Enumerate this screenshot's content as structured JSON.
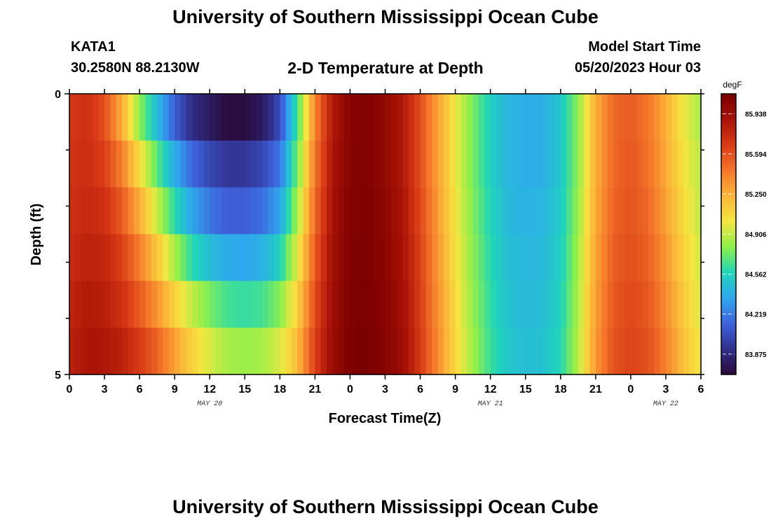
{
  "header": {
    "title": "University of Southern Mississippi Ocean Cube",
    "station": "KATA1",
    "coords": "30.2580N  88.2130W",
    "subtitle": "2-D Temperature at Depth",
    "model_start_label": "Model Start Time",
    "model_start_value": "05/20/2023 Hour 03"
  },
  "footer": {
    "title2": "University of Southern Mississippi Ocean Cube"
  },
  "chart_data": {
    "type": "heatmap",
    "xlabel": "Forecast Time(Z)",
    "ylabel": "Depth (ft)",
    "x_tick_labels": [
      "0",
      "3",
      "6",
      "9",
      "12",
      "15",
      "18",
      "21",
      "0",
      "3",
      "6",
      "9",
      "12",
      "15",
      "18",
      "21",
      "0",
      "3",
      "6"
    ],
    "date_labels": [
      {
        "label": "MAY 20",
        "at_tick_index": 4
      },
      {
        "label": "MAY 21",
        "at_tick_index": 12
      },
      {
        "label": "MAY 22",
        "at_tick_index": 17
      }
    ],
    "y_tick_labels": [
      "0",
      "5"
    ],
    "y_range": [
      0,
      5
    ],
    "colorbar": {
      "unit": "degF",
      "labels": [
        "85.938",
        "85.594",
        "85.250",
        "84.906",
        "84.562",
        "84.219",
        "83.875"
      ],
      "range": [
        83.7,
        86.11
      ],
      "colors": [
        "#2a0a3a",
        "#30308c",
        "#3e62dc",
        "#2fa8ee",
        "#1fd6b8",
        "#8ef04a",
        "#f5e640",
        "#fbb438",
        "#f4762a",
        "#d83a16",
        "#a81206",
        "#7a0000"
      ]
    },
    "time_hours": [
      0,
      1.5,
      3,
      4.5,
      6,
      7.5,
      9,
      10.5,
      12,
      13.5,
      15,
      16.5,
      18,
      19.5,
      21,
      22.5,
      24,
      25.5,
      27,
      28.5,
      30,
      31.5,
      33,
      34.5,
      36,
      37.5,
      39,
      40.5,
      42,
      43.5,
      45,
      46.5,
      48,
      49.5,
      51,
      52.5,
      54
    ],
    "depth_rows": [
      0,
      1,
      2,
      3,
      4,
      5
    ],
    "values": [
      [
        85.68,
        85.73,
        85.6,
        85.25,
        84.8,
        84.45,
        84.12,
        83.9,
        83.8,
        83.72,
        83.72,
        83.8,
        84.05,
        84.65,
        85.4,
        85.85,
        86.05,
        86.08,
        86.0,
        85.85,
        85.6,
        85.3,
        85.0,
        84.75,
        84.55,
        84.42,
        84.38,
        84.4,
        84.5,
        84.8,
        85.25,
        85.5,
        85.55,
        85.45,
        85.25,
        85.0,
        84.85
      ],
      [
        85.7,
        85.74,
        85.66,
        85.42,
        85.05,
        84.7,
        84.38,
        84.15,
        84.02,
        83.95,
        83.95,
        84.02,
        84.2,
        84.75,
        85.45,
        85.88,
        86.06,
        86.08,
        86.0,
        85.85,
        85.6,
        85.3,
        85.0,
        84.75,
        84.55,
        84.42,
        84.38,
        84.4,
        84.5,
        84.8,
        85.25,
        85.5,
        85.57,
        85.47,
        85.27,
        85.03,
        84.88
      ],
      [
        85.72,
        85.77,
        85.72,
        85.55,
        85.25,
        84.92,
        84.6,
        84.35,
        84.2,
        84.12,
        84.12,
        84.18,
        84.35,
        84.85,
        85.5,
        85.9,
        86.07,
        86.09,
        86.02,
        85.88,
        85.62,
        85.32,
        85.02,
        84.77,
        84.57,
        84.44,
        84.4,
        84.42,
        84.52,
        84.82,
        85.27,
        85.52,
        85.58,
        85.5,
        85.3,
        85.06,
        84.9
      ],
      [
        85.74,
        85.8,
        85.78,
        85.65,
        85.42,
        85.15,
        84.85,
        84.6,
        84.45,
        84.38,
        84.36,
        84.4,
        84.55,
        84.98,
        85.55,
        85.92,
        86.08,
        86.1,
        86.03,
        85.9,
        85.64,
        85.34,
        85.04,
        84.79,
        84.59,
        84.46,
        84.42,
        84.44,
        84.54,
        84.84,
        85.29,
        85.54,
        85.6,
        85.53,
        85.34,
        85.1,
        84.93
      ],
      [
        85.78,
        85.85,
        85.82,
        85.72,
        85.55,
        85.35,
        85.1,
        84.9,
        84.75,
        84.65,
        84.62,
        84.65,
        84.78,
        85.1,
        85.6,
        85.94,
        86.09,
        86.1,
        86.04,
        85.92,
        85.66,
        85.36,
        85.06,
        84.81,
        84.61,
        84.48,
        84.44,
        84.46,
        84.56,
        84.86,
        85.31,
        85.56,
        85.62,
        85.56,
        85.38,
        85.14,
        84.96
      ],
      [
        85.8,
        85.88,
        85.87,
        85.8,
        85.68,
        85.52,
        85.3,
        85.1,
        84.95,
        84.85,
        84.82,
        84.85,
        84.95,
        85.2,
        85.65,
        85.96,
        86.1,
        86.11,
        86.05,
        85.94,
        85.68,
        85.38,
        85.08,
        84.83,
        84.63,
        84.5,
        84.46,
        84.48,
        84.58,
        84.88,
        85.33,
        85.58,
        85.64,
        85.59,
        85.42,
        85.18,
        85.0
      ]
    ]
  }
}
